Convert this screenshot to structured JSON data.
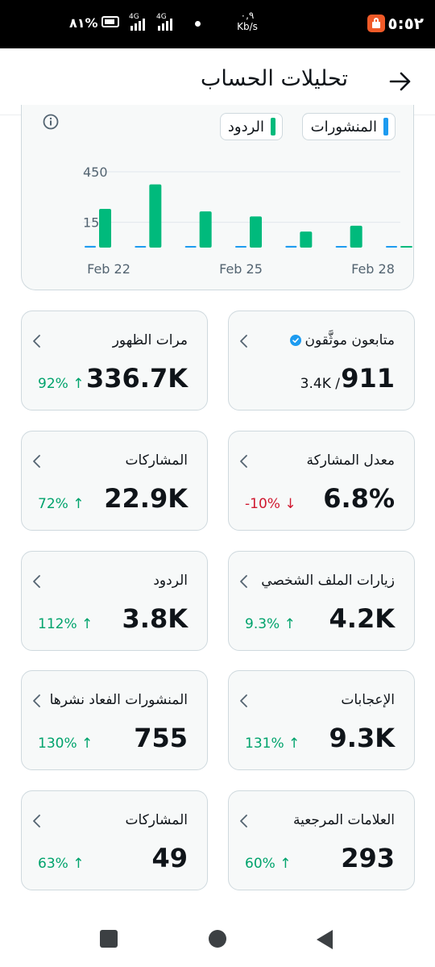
{
  "status_bar": {
    "time": "٥:٥٢",
    "speed_value": "٠,٩",
    "speed_unit": "Kb/s",
    "network_1": "4G",
    "network_2": "4G",
    "battery": "٨١%"
  },
  "header": {
    "title": "تحليلات الحساب"
  },
  "chart": {
    "legend": [
      {
        "label": "المنشورات",
        "color": "#1d9bf0"
      },
      {
        "label": "الردود",
        "color": "#00ba7c"
      }
    ]
  },
  "chart_data": {
    "type": "bar",
    "title": "",
    "xlabel": "",
    "ylabel": "",
    "x_ticks": [
      "Feb 22",
      "Feb 25",
      "Feb 28"
    ],
    "y_ticks": [
      "450",
      "150"
    ],
    "ylim": [
      0,
      600
    ],
    "grid": true,
    "categories": [
      "Feb 22",
      "Feb 23",
      "Feb 24",
      "Feb 25",
      "Feb 26",
      "Feb 27",
      "Feb 28"
    ],
    "series": [
      {
        "name": "المنشورات",
        "color": "#1d9bf0",
        "values": [
          10,
          8,
          8,
          8,
          10,
          8,
          2
        ]
      },
      {
        "name": "الردود",
        "color": "#00ba7c",
        "values": [
          230,
          375,
          215,
          185,
          95,
          130,
          5
        ]
      }
    ]
  },
  "tiles": [
    {
      "label": "متابعون موثَّقون",
      "verified": true,
      "value": "911",
      "sub": "3.4K /",
      "change": "",
      "direction": ""
    },
    {
      "label": "مرات الظهور",
      "verified": false,
      "value": "336.7K",
      "sub": "",
      "change": "92%",
      "direction": "up"
    },
    {
      "label": "معدل المشاركة",
      "verified": false,
      "value": "6.8%",
      "sub": "",
      "change": "-10%",
      "direction": "down"
    },
    {
      "label": "المشاركات",
      "verified": false,
      "value": "22.9K",
      "sub": "",
      "change": "72%",
      "direction": "up"
    },
    {
      "label": "زيارات الملف الشخصي",
      "verified": false,
      "value": "4.2K",
      "sub": "",
      "change": "9.3%",
      "direction": "up"
    },
    {
      "label": "الردود",
      "verified": false,
      "value": "3.8K",
      "sub": "",
      "change": "112%",
      "direction": "up"
    },
    {
      "label": "الإعجابات",
      "verified": false,
      "value": "9.3K",
      "sub": "",
      "change": "131%",
      "direction": "up"
    },
    {
      "label": "المنشورات الفعاد نشرها",
      "verified": false,
      "value": "755",
      "sub": "",
      "change": "130%",
      "direction": "up"
    },
    {
      "label": "العلامات المرجعية",
      "verified": false,
      "value": "293",
      "sub": "",
      "change": "60%",
      "direction": "up"
    },
    {
      "label": "المشاركات",
      "verified": false,
      "value": "49",
      "sub": "",
      "change": "63%",
      "direction": "up"
    }
  ]
}
